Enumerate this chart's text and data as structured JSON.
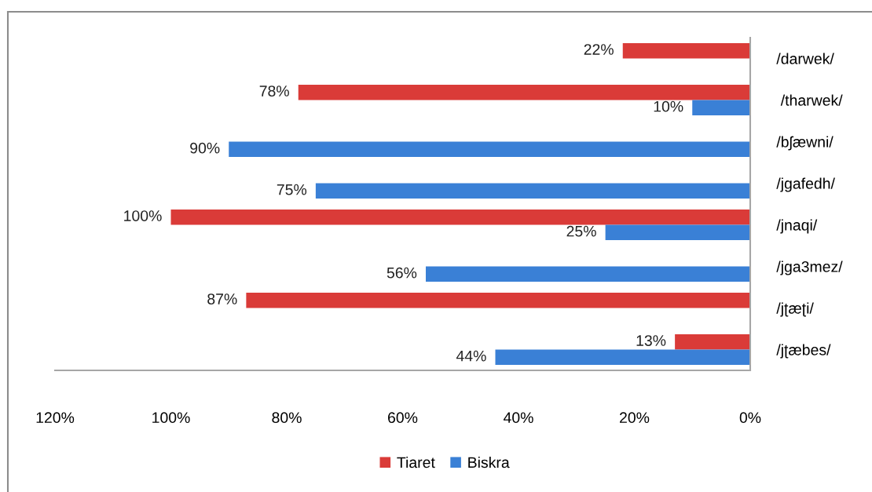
{
  "chart_data": {
    "type": "bar",
    "orientation": "horizontal",
    "categories": [
      "/darwek/",
      " /tharwek/",
      "/bʃæwni/",
      "/jgafedh/",
      "/jnaqi/",
      "/jga3mez/",
      "/jʈæʈi/",
      "/jʈæbes/"
    ],
    "series": [
      {
        "name": "Tiaret",
        "color": "#da3b38",
        "values": [
          22,
          78,
          null,
          null,
          100,
          null,
          87,
          13
        ],
        "value_labels": [
          "22%",
          "78%",
          null,
          null,
          "100%",
          null,
          "87%",
          "13%"
        ]
      },
      {
        "name": "Biskra",
        "color": "#3a80d6",
        "values": [
          null,
          10,
          90,
          75,
          25,
          56,
          null,
          44
        ],
        "value_labels": [
          null,
          "10%",
          "90%",
          "75%",
          "25%",
          "56%",
          null,
          "44%"
        ]
      }
    ],
    "xlim": [
      120,
      0
    ],
    "xticks": [
      {
        "value": 120,
        "label": "120%"
      },
      {
        "value": 100,
        "label": "100%"
      },
      {
        "value": 80,
        "label": "80%"
      },
      {
        "value": 60,
        "label": "60%"
      },
      {
        "value": 40,
        "label": "40%"
      },
      {
        "value": 20,
        "label": "20%"
      },
      {
        "value": 0,
        "label": "0%"
      }
    ],
    "grid": false,
    "legend": "bottom"
  }
}
